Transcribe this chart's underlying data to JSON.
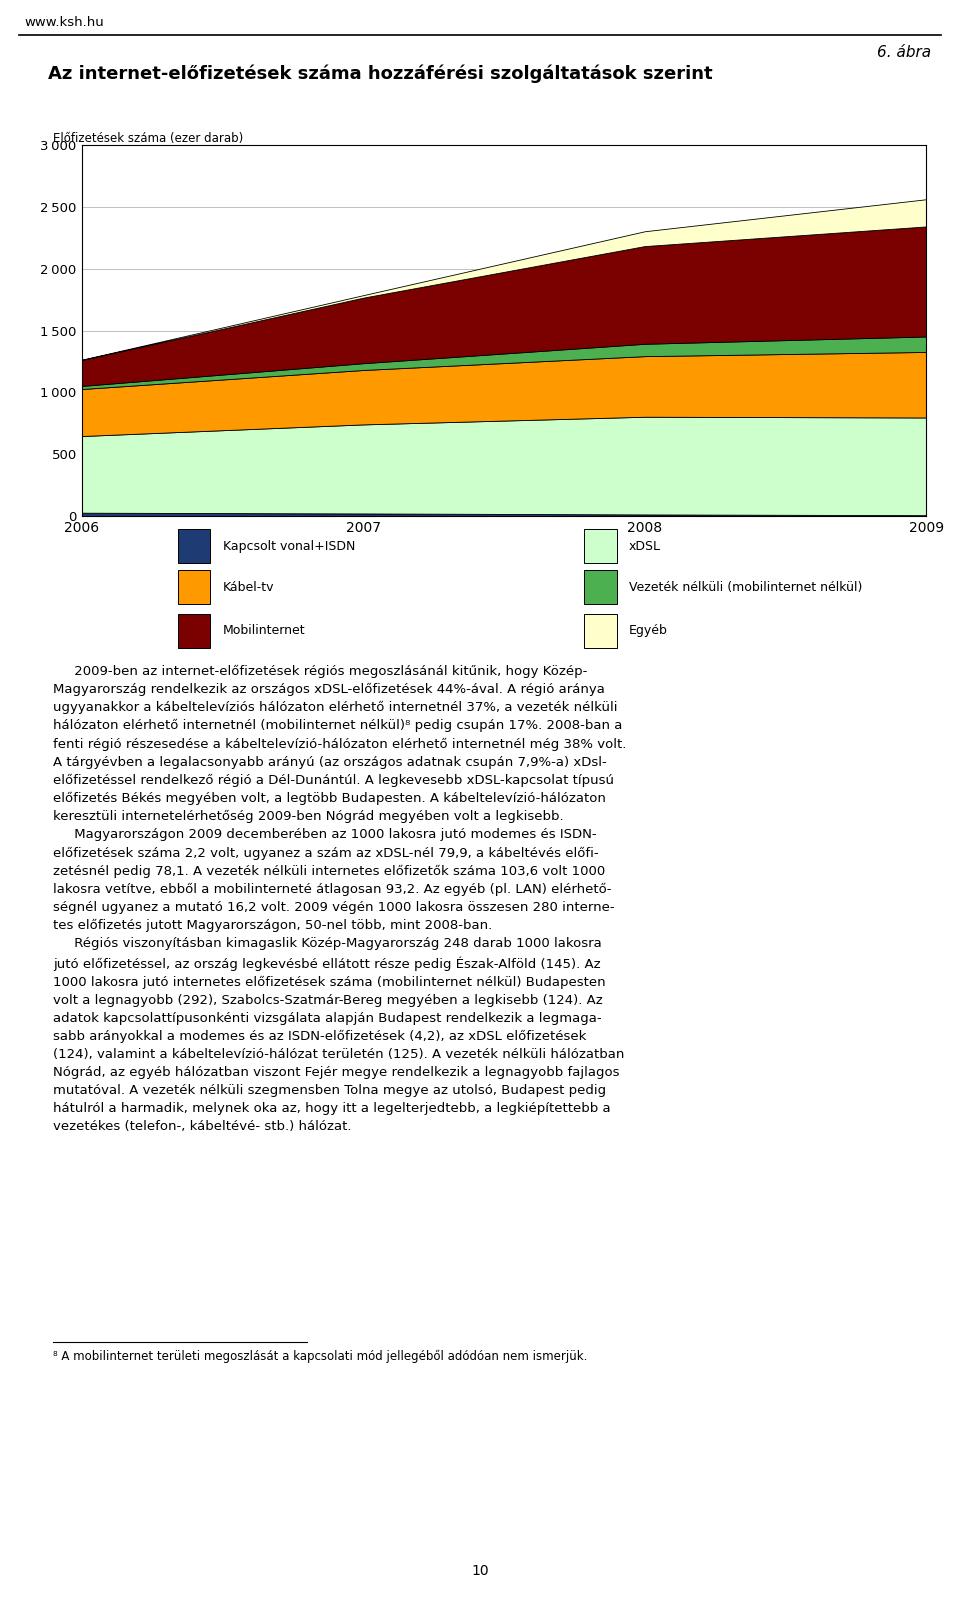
{
  "title": "Az internet-előfizetések száma hozzáférési szolgáltatások szerint",
  "ylabel": "Előfizetések száma (ezer darab)",
  "figure_label": "6. ábra",
  "header": "www.ksh.hu",
  "years": [
    2006,
    2007,
    2008,
    2009
  ],
  "series": [
    {
      "name": "Kapcsolt vonal+ISDN",
      "color": "#1F3B73",
      "values": [
        28,
        22,
        14,
        8
      ]
    },
    {
      "name": "xDSL",
      "color": "#CCFFCC",
      "values": [
        620,
        720,
        790,
        790
      ]
    },
    {
      "name": "Kábel-tv",
      "color": "#FF9900",
      "values": [
        380,
        440,
        490,
        530
      ]
    },
    {
      "name": "Vezeték nélküli (mobilinternet nélkül)",
      "color": "#4CAF50",
      "values": [
        25,
        55,
        100,
        125
      ]
    },
    {
      "name": "Mobilinternet",
      "color": "#7B0000",
      "values": [
        210,
        530,
        790,
        890
      ]
    },
    {
      "name": "Egyéb",
      "color": "#FFFFCC",
      "values": [
        2,
        20,
        120,
        220
      ]
    }
  ],
  "ylim": [
    0,
    3000
  ],
  "yticks": [
    0,
    500,
    1000,
    1500,
    2000,
    2500,
    3000
  ],
  "background_color": "#FFFFFF",
  "plot_bg_color": "#FFFFFF",
  "grid_color": "#C0C0C0",
  "body_text": "     2009-ben az internet-előfizetések régiós megoszlásánál kitűnik, hogy Közép-\nMagyarország rendelkezik az országos xDSL-előfizetések 44%-ával. A régió aránya\nugyyanakkor a kábeltelevíziós hálózaton elérhető internetnél 37%, a vezeték nélküli\nhálózaton elérhető internetnél (mobilinternet nélkül)⁸ pedig csupán 17%. 2008-ban a\nfenti régió részesedése a kábeltelevízió-hálózaton elérhető internetnél még 38% volt.\nA tárgyévben a legalacsonyabb arányú (az országos adatnak csupán 7,9%-a) xDsl-\nelőfizetéssel rendelkező régió a Dél-Dunántúl. A legkevesebb xDSL-kapcsolat típusú\nelőfizetés Békés megyében volt, a legtöbb Budapesten. A kábeltelevízió-hálózaton\nkeresztüli internetelérhetőség 2009-ben Nógrád megyében volt a legkisebb.\n     Magyarországon 2009 decemberében az 1000 lakosra jutó modemes és ISDN-\nelőfizetések száma 2,2 volt, ugyanez a szám az xDSL-nél 79,9, a kábeltévés előfi-\nzetésnél pedig 78,1. A vezeték nélküli internetes előfizetők száma 103,6 volt 1000\nlakosra vetítve, ebből a mobilinterneté átlagosan 93,2. Az egyéb (pl. LAN) elérhető-\nségnél ugyanez a mutató 16,2 volt. 2009 végén 1000 lakosra összesen 280 interne-\ntes előfizetés jutott Magyarországon, 50-nel több, mint 2008-ban.\n     Régiós viszonyításban kimagaslik Közép-Magyarország 248 darab 1000 lakosra\njutó előfizetéssel, az ország legkevésbé ellátott része pedig Észak-Alföld (145). Az\n1000 lakosra jutó internetes előfizetések száma (mobilinternet nélkül) Budapesten\nvolt a legnagyobb (292), Szabolcs-Szatmár-Bereg megyében a legkisebb (124). Az\nadatok kapcsolattípusonkénti vizsgálata alapján Budapest rendelkezik a legmaga-\nsabb arányokkal a modemes és az ISDN-előfizetések (4,2), az xDSL előfizetések\n(124), valamint a kábeltelevízió-hálózat területén (125). A vezeték nélküli hálózatban\nNógrád, az egyéb hálózatban viszont Fejér megye rendelkezik a legnagyobb fajlagos\nmutatóval. A vezeték nélküli szegmensben Tolna megye az utolsó, Budapest pedig\nhátulról a harmadik, melynek oka az, hogy itt a legelterjedtebb, a legkiépítettebb a\nvezetékes (telefon-, kábeltévé- stb.) hálózat.",
  "footnote": "⁸ A mobilinternet területi megoszlását a kapcsolati mód jellegéből adódóan nem ismerjük.",
  "page_number": "10"
}
